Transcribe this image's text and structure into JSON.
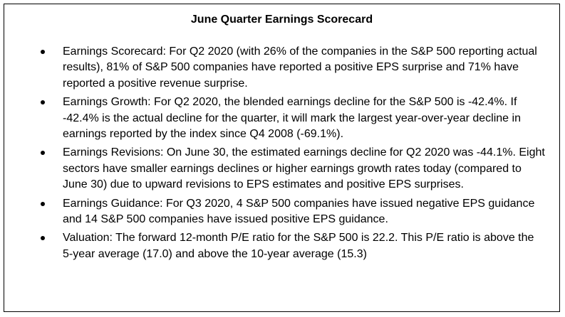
{
  "title": "June Quarter Earnings Scorecard",
  "bullets": [
    "Earnings Scorecard: For Q2 2020 (with 26% of the companies in the S&P 500 reporting actual results), 81% of S&P 500 companies have reported a positive EPS surprise and 71% have reported a positive revenue surprise.",
    "Earnings Growth: For Q2 2020, the blended earnings decline for the S&P 500 is -42.4%. If -42.4% is the actual decline for the quarter, it will mark the largest year-over-year decline in earnings reported by the index since Q4 2008 (-69.1%).",
    "Earnings Revisions: On June 30, the estimated earnings decline for Q2 2020 was -44.1%. Eight sectors have smaller earnings declines or higher earnings growth rates today (compared to June 30) due to upward revisions to EPS estimates and positive EPS surprises.",
    "Earnings Guidance: For Q3 2020, 4 S&P 500 companies have issued negative EPS guidance and 14 S&P 500 companies have issued positive EPS guidance.",
    "Valuation: The forward 12-month P/E ratio for the S&P 500 is 22.2. This P/E ratio is above the 5-year average (17.0) and above the 10-year average (15.3)"
  ]
}
